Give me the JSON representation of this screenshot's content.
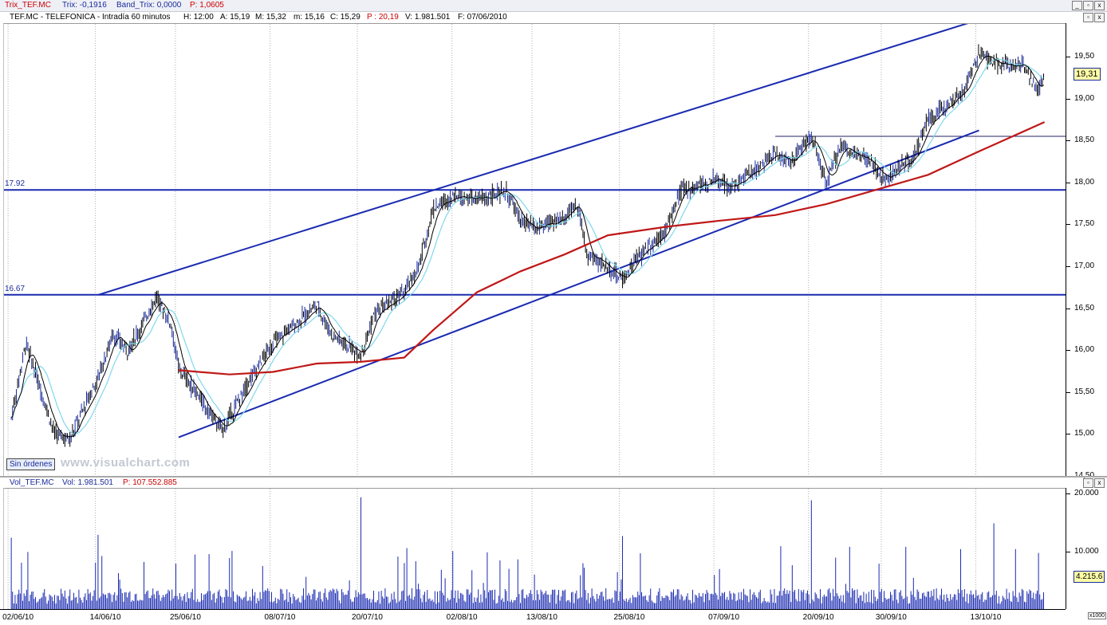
{
  "header": {
    "trix_name": "Trix_TEF.MC",
    "trix_value": "Trix: -0,1916",
    "band_trix": "Band_Trix: 0,0000",
    "p_value": "P: 1,0605"
  },
  "price_panel": {
    "symbol": "TEF.MC - TELEFONICA - Intradía 60 minutos",
    "h": "H: 12:00",
    "a": "A: 15,19",
    "m": "M: 15,32",
    "mn": "m: 15,16",
    "c": "C: 15,29",
    "p": "P : 20,19",
    "v": "V: 1.981.501",
    "f": "F: 07/06/2010",
    "last_price": "19,31",
    "level_high_label": "17.92",
    "level_low_label": "16.67",
    "sin_ordenes": "Sin órdenes",
    "watermark": "www.visualchart.com"
  },
  "volume_panel": {
    "title": "Vol_TEF.MC",
    "vol": "Vol: 1.981.501",
    "p": "P: 107.552.885",
    "last_volume": "4.215.6",
    "multiplier": "x1000"
  },
  "colors": {
    "candles": "#000000",
    "candles_alt": "#1a2a9a",
    "channel": "#1a2ab0",
    "ma_red": "#c01818",
    "ma_cyan": "#7fd8ec",
    "ma_black": "#000000",
    "volume": "#1a2ab0"
  },
  "chart_data": [
    {
      "type": "line",
      "title": "TEF.MC - TELEFONICA - Intradía 60 minutos",
      "x_labels": [
        "02/06/10",
        "14/06/10",
        "25/06/10",
        "08/07/10",
        "20/07/10",
        "02/08/10",
        "13/08/10",
        "25/08/10",
        "07/09/10",
        "20/09/10",
        "30/09/10",
        "13/10/10"
      ],
      "y_ticks": [
        "14,50",
        "15,00",
        "15,50",
        "16,00",
        "16,50",
        "17,00",
        "17,50",
        "18,00",
        "18,50",
        "19,00",
        "19,50"
      ],
      "ylim": [
        14.5,
        19.9
      ],
      "horizontal_levels": [
        {
          "label": "17.92",
          "value": 17.92
        },
        {
          "label": "16.67",
          "value": 16.67
        },
        {
          "label": "",
          "value": 18.56
        }
      ],
      "channel": {
        "upper": [
          {
            "date": "14/06/10",
            "y": 16.67
          },
          {
            "date": "02/08/10",
            "y": 17.93
          },
          {
            "date": "13/10/10",
            "y": 19.95
          }
        ],
        "lower": [
          {
            "date": "25/06/10",
            "y": 14.97
          },
          {
            "date": "25/08/10",
            "y": 16.7
          },
          {
            "date": "13/10/10",
            "y": 18.63
          }
        ]
      },
      "series": [
        {
          "name": "",
          "style": "price",
          "points": [
            [
              "02/06/10",
              15.2
            ],
            [
              "04/06/10",
              16.1
            ],
            [
              "08/06/10",
              15.0
            ],
            [
              "10/06/10",
              14.95
            ],
            [
              "14/06/10",
              15.7
            ],
            [
              "16/06/10",
              16.2
            ],
            [
              "18/06/10",
              16.0
            ],
            [
              "22/06/10",
              16.65
            ],
            [
              "24/06/10",
              16.3
            ],
            [
              "25/06/10",
              15.8
            ],
            [
              "29/06/10",
              15.3
            ],
            [
              "01/07/10",
              15.05
            ],
            [
              "05/07/10",
              15.7
            ],
            [
              "08/07/10",
              16.1
            ],
            [
              "12/07/10",
              16.4
            ],
            [
              "14/07/10",
              16.55
            ],
            [
              "16/07/10",
              16.2
            ],
            [
              "20/07/10",
              15.95
            ],
            [
              "22/07/10",
              16.45
            ],
            [
              "26/07/10",
              16.7
            ],
            [
              "28/07/10",
              17.0
            ],
            [
              "30/07/10",
              17.7
            ],
            [
              "02/08/10",
              17.85
            ],
            [
              "05/08/10",
              17.8
            ],
            [
              "09/08/10",
              17.9
            ],
            [
              "11/08/10",
              17.55
            ],
            [
              "13/08/10",
              17.45
            ],
            [
              "17/08/10",
              17.6
            ],
            [
              "19/08/10",
              17.75
            ],
            [
              "20/08/10",
              17.15
            ],
            [
              "23/08/10",
              17.0
            ],
            [
              "25/08/10",
              16.85
            ],
            [
              "27/08/10",
              17.1
            ],
            [
              "31/08/10",
              17.45
            ],
            [
              "02/09/10",
              17.9
            ],
            [
              "07/09/10",
              18.05
            ],
            [
              "09/09/10",
              17.95
            ],
            [
              "13/09/10",
              18.2
            ],
            [
              "15/09/10",
              18.35
            ],
            [
              "17/09/10",
              18.25
            ],
            [
              "20/09/10",
              18.55
            ],
            [
              "22/09/10",
              18.0
            ],
            [
              "24/09/10",
              18.45
            ],
            [
              "28/09/10",
              18.25
            ],
            [
              "30/09/10",
              18.05
            ],
            [
              "04/10/10",
              18.3
            ],
            [
              "06/10/10",
              18.75
            ],
            [
              "08/10/10",
              18.9
            ],
            [
              "11/10/10",
              19.1
            ],
            [
              "13/10/10",
              19.55
            ],
            [
              "15/10/10",
              19.45
            ],
            [
              "19/10/10",
              19.4
            ],
            [
              "21/10/10",
              19.1
            ],
            [
              "22/10/10",
              19.31
            ]
          ]
        },
        {
          "name": "",
          "style": "ma_red",
          "points": [
            [
              "25/06/10",
              15.77
            ],
            [
              "02/07/10",
              15.72
            ],
            [
              "08/07/10",
              15.75
            ],
            [
              "14/07/10",
              15.85
            ],
            [
              "20/07/10",
              15.87
            ],
            [
              "26/07/10",
              15.92
            ],
            [
              "30/07/10",
              16.25
            ],
            [
              "05/08/10",
              16.7
            ],
            [
              "11/08/10",
              16.95
            ],
            [
              "17/08/10",
              17.15
            ],
            [
              "23/08/10",
              17.38
            ],
            [
              "31/08/10",
              17.48
            ],
            [
              "07/09/10",
              17.55
            ],
            [
              "15/09/10",
              17.62
            ],
            [
              "22/09/10",
              17.75
            ],
            [
              "30/09/10",
              17.95
            ],
            [
              "06/10/10",
              18.1
            ],
            [
              "13/10/10",
              18.38
            ],
            [
              "22/10/10",
              18.73
            ]
          ]
        }
      ]
    },
    {
      "type": "bar",
      "title": "Vol_TEF.MC",
      "y_ticks": [
        "10.000",
        "20.000"
      ],
      "ylim": [
        0,
        21000
      ],
      "unit": "x1000",
      "last_value": "4.215.6",
      "peaks": [
        {
          "date": "20/07/10",
          "value": 19500
        },
        {
          "date": "20/09/10",
          "value": 19000
        },
        {
          "date": "15/10/10",
          "value": 15000
        },
        {
          "date": "14/06/10",
          "value": 13000
        },
        {
          "date": "02/06/10",
          "value": 12500
        },
        {
          "date": "25/08/10",
          "value": 12800
        }
      ],
      "typical_value": 3000
    }
  ]
}
